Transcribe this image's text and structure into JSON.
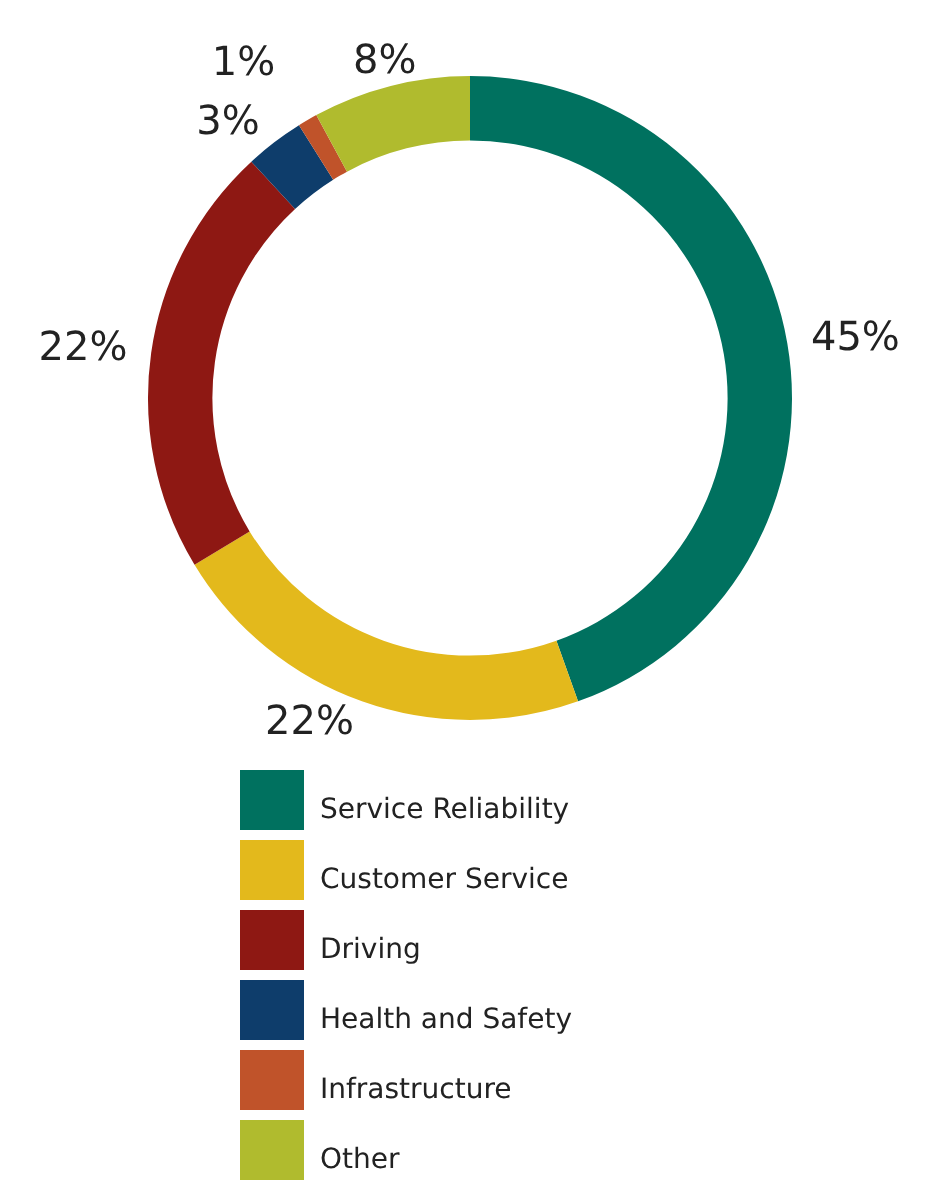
{
  "chart_data": {
    "type": "donut",
    "categories": [
      "Service Reliability",
      "Customer Service",
      "Driving",
      "Health and Safety",
      "Infrastructure",
      "Other"
    ],
    "values": [
      45,
      22,
      22,
      3,
      1,
      8
    ],
    "colors": [
      "#00715f",
      "#e3b91c",
      "#8e1813",
      "#0e3d6b",
      "#c0532a",
      "#b0bb2e"
    ],
    "value_labels": [
      "45%",
      "22%",
      "22%",
      "3%",
      "1%",
      "8%"
    ],
    "legend": "bottom"
  }
}
